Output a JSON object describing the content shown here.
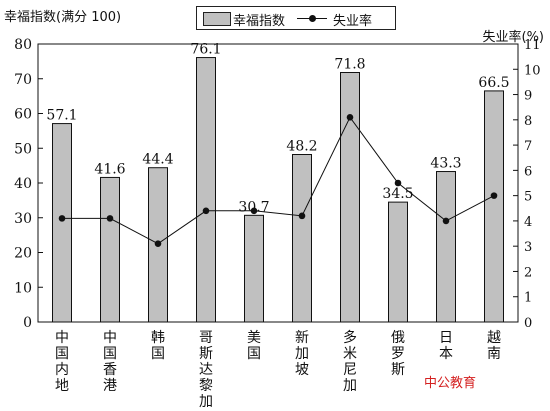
{
  "chart_data": {
    "type": "bar",
    "categories": [
      "中国内地",
      "中国香港",
      "韩国",
      "哥斯达黎加",
      "美国",
      "新加坡",
      "多米尼加",
      "俄罗斯",
      "日本",
      "越南"
    ],
    "series": [
      {
        "name": "幸福指数",
        "type": "bar",
        "axis": "left",
        "values": [
          57.1,
          41.6,
          44.4,
          76.1,
          30.7,
          48.2,
          71.8,
          34.5,
          43.3,
          66.5
        ]
      },
      {
        "name": "失业率",
        "type": "line",
        "axis": "right",
        "values": [
          4.1,
          4.1,
          3.1,
          4.4,
          4.4,
          4.2,
          8.1,
          5.5,
          4.0,
          5.0
        ]
      }
    ],
    "ylabel": "幸福指数(满分 100)",
    "ylabel_right": "失业率(%)",
    "ylim": [
      0,
      80
    ],
    "yticks": [
      0,
      10,
      20,
      30,
      40,
      50,
      60,
      70,
      80
    ],
    "ylim_right": [
      0,
      11
    ],
    "yticks_right": [
      0,
      1,
      2,
      3,
      4,
      5,
      6,
      7,
      8,
      9,
      10,
      11
    ],
    "legend": [
      "幸福指数",
      "失业率"
    ],
    "legend_position": "top-center",
    "grid": false,
    "colors": {
      "bar": "#c0c0c0",
      "line": "#111111"
    }
  },
  "watermark": "中公教育"
}
